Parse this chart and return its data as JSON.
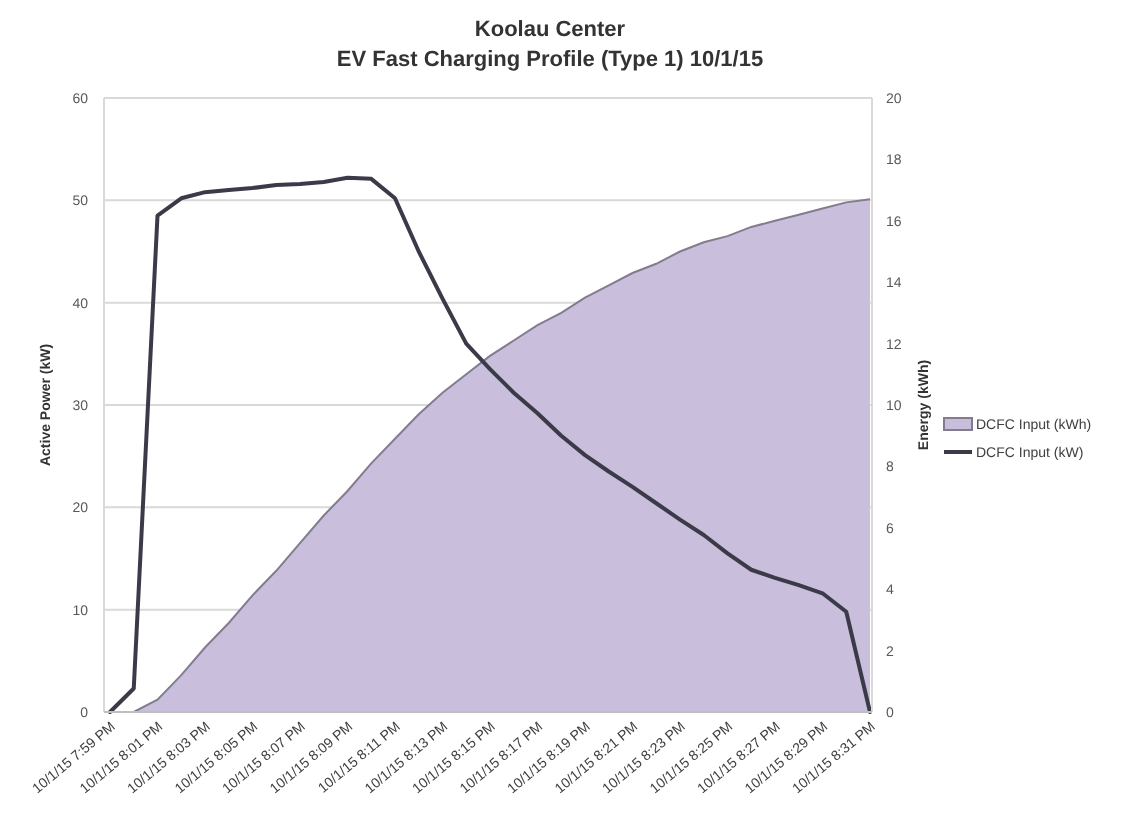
{
  "chart_data": {
    "type": "line",
    "title": "Koolau Center",
    "subtitle": "EV Fast Charging Profile (Type 1) 10/1/15",
    "ylabel": "Active Power (kW)",
    "y2label": "Energy (kWh)",
    "categories": [
      "10/1/15 7:59 PM",
      null,
      "10/1/15 8:01 PM",
      null,
      "10/1/15 8:03 PM",
      null,
      "10/1/15 8:05 PM",
      null,
      "10/1/15 8:07 PM",
      null,
      "10/1/15 8:09 PM",
      null,
      "10/1/15 8:11 PM",
      null,
      "10/1/15 8:13 PM",
      null,
      "10/1/15 8:15 PM",
      null,
      "10/1/15 8:17 PM",
      null,
      "10/1/15 8:19 PM",
      null,
      "10/1/15 8:21 PM",
      null,
      "10/1/15 8:23 PM",
      null,
      "10/1/15 8:25 PM",
      null,
      "10/1/15 8:27 PM",
      null,
      "10/1/15 8:29 PM",
      null,
      "10/1/15 8:31 PM"
    ],
    "series": [
      {
        "name": "DCFC Input (kWh)",
        "type": "area",
        "axis": "y2",
        "color": "#c9bfdc",
        "values": [
          0,
          0,
          0.4,
          1.2,
          2.1,
          2.9,
          3.8,
          4.6,
          5.5,
          6.4,
          7.2,
          8.1,
          8.9,
          9.7,
          10.4,
          11.0,
          11.6,
          12.1,
          12.6,
          13.0,
          13.5,
          13.9,
          14.3,
          14.6,
          15.0,
          15.3,
          15.5,
          15.8,
          16.0,
          16.2,
          16.4,
          16.6,
          16.7
        ]
      },
      {
        "name": "DCFC Input (kW)",
        "color": "#3b3a48",
        "values": [
          0,
          2.3,
          48.5,
          50.2,
          50.8,
          51.0,
          51.2,
          51.5,
          51.6,
          51.8,
          52.2,
          52.1,
          50.2,
          45.0,
          40.4,
          36.0,
          33.5,
          31.2,
          29.2,
          27.0,
          25.1,
          23.5,
          22.0,
          20.4,
          18.8,
          17.3,
          15.5,
          13.9,
          13.1,
          12.4,
          11.6,
          9.8,
          0
        ]
      }
    ],
    "ylim": [
      0,
      60
    ],
    "yticks": [
      0,
      10,
      20,
      30,
      40,
      50,
      60
    ],
    "y2lim": [
      0,
      20
    ],
    "y2ticks": [
      0,
      2,
      4,
      6,
      8,
      10,
      12,
      14,
      16,
      18,
      20
    ],
    "grid": "y",
    "legend": "right"
  }
}
